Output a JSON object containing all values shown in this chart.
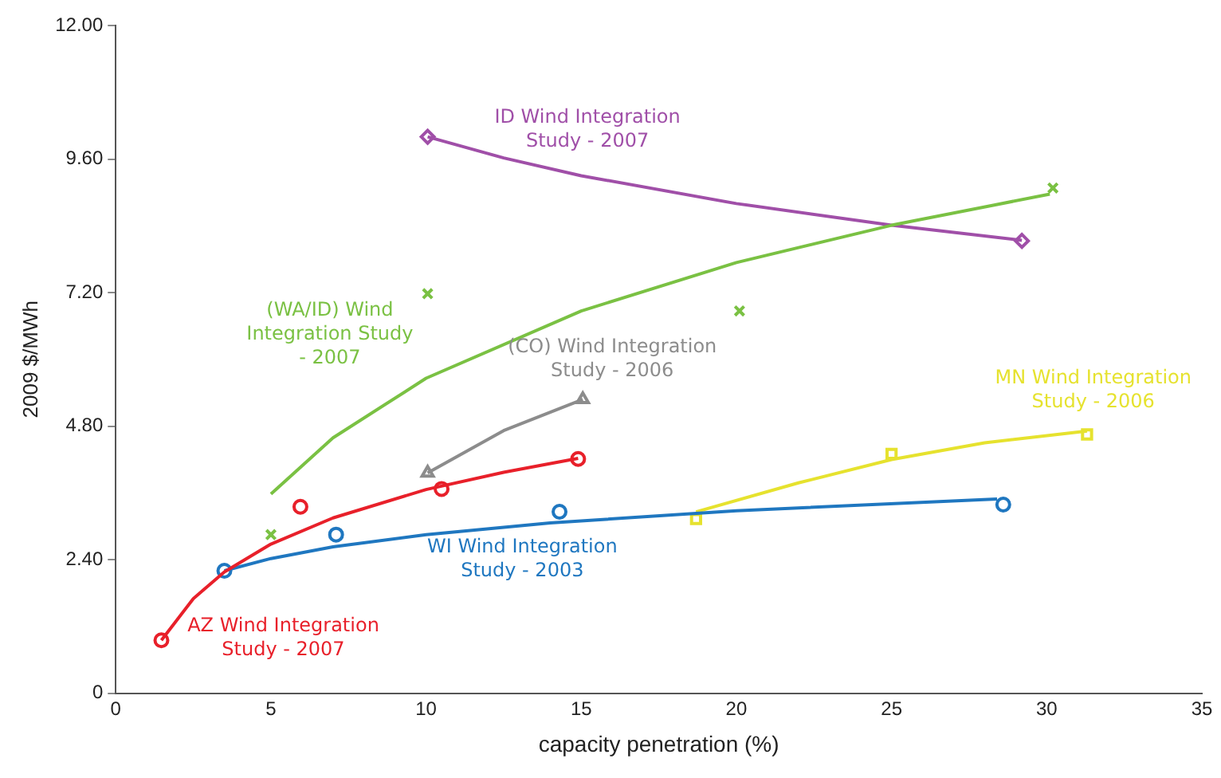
{
  "chart_data": {
    "type": "scatter",
    "xlabel": "capacity penetration (%)",
    "ylabel": "2009 $/MWh",
    "xlim": [
      0,
      35
    ],
    "xticks": [
      0,
      5,
      10,
      15,
      20,
      25,
      30,
      35
    ],
    "ylim": [
      0,
      12
    ],
    "yticks": [
      0,
      {
        "value": 2.4,
        "label": "2.40"
      },
      {
        "value": 4.8,
        "label": "4.80"
      },
      {
        "value": 7.2,
        "label": "7.20"
      },
      {
        "value": 9.6,
        "label": "9.60"
      },
      {
        "value": 12,
        "label": "12.00"
      }
    ],
    "grid": false,
    "legend": false,
    "series": [
      {
        "type": "line",
        "marker": "none",
        "color": "#e8202a",
        "x": [
          1.47,
          2.5,
          3.5,
          5,
          7,
          10,
          12.5,
          14.9
        ],
        "values": [
          0.95,
          1.7,
          2.18,
          2.68,
          3.15,
          3.66,
          3.97,
          4.22
        ]
      },
      {
        "type": "line",
        "marker": "none",
        "color": "#1f77c0",
        "x": [
          3.5,
          5,
          7,
          10,
          14,
          20,
          28.4
        ],
        "values": [
          2.2,
          2.42,
          2.63,
          2.85,
          3.06,
          3.28,
          3.49
        ]
      },
      {
        "type": "line",
        "marker": "none",
        "color": "#7ac143",
        "x": [
          5,
          7,
          10,
          15,
          20,
          25,
          30.1
        ],
        "values": [
          3.58,
          4.59,
          5.66,
          6.87,
          7.74,
          8.41,
          8.97
        ]
      },
      {
        "type": "line",
        "marker": "none",
        "color": "#8c8c8c",
        "x": [
          10.05,
          12.5,
          15.05
        ],
        "values": [
          3.96,
          4.72,
          5.28
        ]
      },
      {
        "type": "line",
        "marker": "none",
        "color": "#a04fa8",
        "x": [
          10.05,
          12.5,
          15,
          20,
          25,
          29.2
        ],
        "values": [
          10.0,
          9.62,
          9.3,
          8.8,
          8.41,
          8.14
        ]
      },
      {
        "type": "line",
        "marker": "none",
        "color": "#e6e22e",
        "x": [
          18.7,
          22,
          25,
          28,
          31.3
        ],
        "values": [
          3.26,
          3.78,
          4.2,
          4.5,
          4.71
        ]
      },
      {
        "type": "scatter",
        "name": "AZ Wind Integration Study - 2007",
        "marker": "circle",
        "color": "#e8202a",
        "x": [
          1.47,
          5.95,
          10.5,
          14.9
        ],
        "values": [
          0.95,
          3.35,
          3.67,
          4.21
        ]
      },
      {
        "type": "scatter",
        "name": "WI Wind Integration Study - 2003",
        "marker": "circle",
        "color": "#1f77c0",
        "x": [
          3.5,
          7.1,
          14.3,
          28.6
        ],
        "values": [
          2.2,
          2.85,
          3.26,
          3.39
        ]
      },
      {
        "type": "scatter",
        "name": "(WA/ID) Wind Integration Study - 2007",
        "marker": "cross",
        "color": "#7ac143",
        "x": [
          5,
          10.05,
          20.1,
          30.2
        ],
        "values": [
          2.85,
          7.18,
          6.87,
          9.08
        ]
      },
      {
        "type": "scatter",
        "name": "(CO) Wind Integration Study - 2006",
        "marker": "triangle",
        "color": "#8c8c8c",
        "x": [
          10.05,
          15.05
        ],
        "values": [
          3.96,
          5.28
        ]
      },
      {
        "type": "scatter",
        "name": "ID Wind Integration Study - 2007",
        "marker": "diamond",
        "color": "#a04fa8",
        "x": [
          10.05,
          29.2
        ],
        "values": [
          10.0,
          8.13
        ]
      },
      {
        "type": "scatter",
        "name": "MN Wind Integration Study - 2006",
        "marker": "square",
        "color": "#e6e22e",
        "x": [
          18.7,
          25,
          31.3
        ],
        "values": [
          3.13,
          4.3,
          4.65
        ]
      }
    ]
  }
}
